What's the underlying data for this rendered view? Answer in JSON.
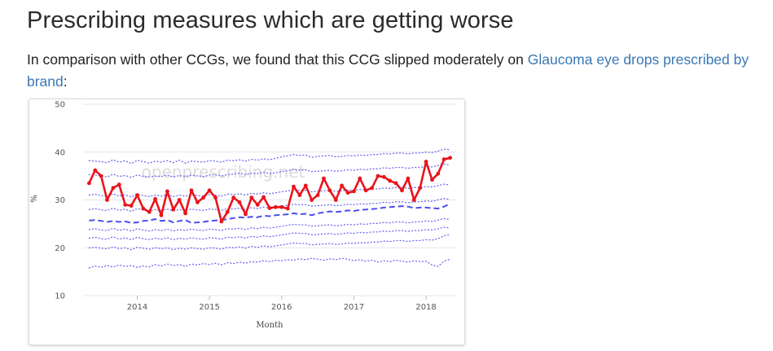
{
  "heading": "Prescribing measures which are getting worse",
  "intro": {
    "before": "In comparison with other CCGs, we found that this CCG slipped moderately on ",
    "link": "Glaucoma eye drops prescribed by brand",
    "after": ":"
  },
  "colors": {
    "ccg_line": "#e8141b",
    "median": "#4c4cf0",
    "deciles": "#6a6af0",
    "grid": "#e6e6e6",
    "link": "#3a78b5"
  },
  "chart_data": {
    "type": "line",
    "watermark": "openprescribing.net",
    "xlabel": "Month",
    "ylabel": "%",
    "ylim": [
      10,
      50
    ],
    "yticks": [
      10,
      20,
      30,
      40,
      50
    ],
    "xlim": [
      "2013-04",
      "2018-06"
    ],
    "xticks": [
      "2014",
      "2015",
      "2016",
      "2017",
      "2018"
    ],
    "x_start": "2013-05",
    "grid": "horizontal",
    "series": [
      {
        "role": "ccg",
        "style": "solid-markers",
        "values": [
          33.5,
          36.2,
          35.0,
          30.0,
          32.5,
          33.2,
          29.0,
          28.8,
          31.0,
          28.2,
          27.5,
          30.2,
          26.8,
          31.8,
          28.0,
          30.0,
          27.2,
          32.0,
          29.5,
          30.5,
          32.0,
          30.5,
          25.5,
          27.5,
          30.5,
          29.5,
          27.0,
          30.5,
          29.0,
          30.6,
          28.3,
          28.5,
          28.5,
          28.2,
          32.8,
          31.0,
          33.0,
          30.0,
          31.0,
          34.5,
          32.0,
          30.0,
          33.0,
          31.5,
          31.8,
          34.5,
          32.0,
          32.5,
          35.0,
          34.8,
          34.0,
          33.5,
          32.0,
          34.5,
          30.0,
          32.5,
          38.0,
          34.2,
          35.5,
          38.5,
          38.8
        ]
      },
      {
        "role": "decile-90",
        "style": "dotted",
        "values": [
          38.2,
          38.1,
          38.0,
          37.8,
          38.4,
          37.9,
          38.2,
          37.6,
          38.3,
          38.0,
          37.7,
          38.1,
          37.9,
          38.2,
          37.8,
          38.3,
          37.7,
          38.1,
          38.0,
          37.9,
          38.2,
          38.1,
          37.9,
          38.3,
          38.2,
          38.4,
          38.1,
          38.5,
          38.3,
          38.6,
          38.4,
          38.7,
          39.0,
          39.2,
          39.5,
          39.3,
          39.4,
          38.9,
          39.1,
          39.2,
          39.3,
          39.0,
          39.1,
          39.3,
          39.2,
          39.4,
          39.3,
          39.5,
          39.5,
          39.7,
          39.6,
          39.8,
          39.8,
          39.6,
          39.8,
          39.8,
          40.0,
          39.9,
          40.2,
          40.6,
          40.5
        ]
      },
      {
        "role": "decile-80",
        "style": "dotted",
        "values": [
          35.3,
          35.2,
          35.0,
          34.8,
          35.4,
          34.9,
          35.1,
          34.7,
          35.2,
          34.9,
          34.8,
          35.0,
          34.9,
          35.2,
          34.8,
          35.1,
          34.9,
          35.2,
          35.0,
          34.9,
          35.2,
          35.3,
          35.0,
          35.3,
          35.4,
          35.6,
          35.3,
          35.6,
          35.5,
          35.8,
          35.5,
          35.7,
          35.9,
          36.1,
          36.4,
          36.2,
          36.3,
          35.9,
          36.0,
          36.1,
          36.2,
          36.0,
          36.1,
          36.3,
          36.2,
          36.4,
          36.3,
          36.5,
          36.5,
          36.7,
          36.6,
          36.8,
          36.8,
          36.6,
          36.8,
          36.8,
          37.0,
          36.9,
          37.2,
          37.5,
          37.3
        ]
      },
      {
        "role": "decile-70",
        "style": "dotted",
        "values": [
          31.0,
          31.2,
          30.9,
          30.8,
          31.3,
          30.8,
          31.1,
          30.6,
          31.2,
          30.9,
          30.7,
          31.0,
          30.8,
          31.1,
          30.7,
          31.0,
          30.8,
          31.1,
          30.9,
          30.8,
          31.1,
          31.0,
          30.8,
          31.2,
          31.1,
          31.3,
          31.0,
          31.4,
          31.2,
          31.5,
          31.3,
          31.5,
          31.7,
          31.9,
          32.1,
          32.0,
          32.0,
          31.7,
          31.8,
          31.9,
          32.0,
          31.8,
          31.9,
          32.1,
          32.0,
          32.2,
          32.1,
          32.3,
          32.3,
          32.5,
          32.4,
          32.6,
          32.6,
          32.4,
          32.6,
          32.6,
          32.8,
          32.7,
          33.0,
          33.3,
          33.1
        ]
      },
      {
        "role": "decile-60",
        "style": "dotted",
        "values": [
          28.0,
          28.2,
          27.9,
          27.8,
          28.3,
          27.8,
          28.1,
          27.6,
          28.2,
          27.9,
          27.7,
          28.0,
          27.8,
          28.1,
          27.7,
          28.0,
          27.8,
          28.1,
          27.9,
          27.8,
          28.1,
          28.0,
          27.8,
          28.2,
          28.1,
          28.3,
          28.0,
          28.4,
          28.2,
          28.5,
          28.3,
          28.5,
          28.7,
          28.9,
          29.1,
          29.0,
          29.0,
          28.7,
          28.8,
          28.9,
          29.0,
          28.8,
          28.9,
          29.1,
          29.0,
          29.2,
          29.1,
          29.3,
          29.3,
          29.5,
          29.4,
          29.6,
          29.6,
          29.4,
          29.6,
          29.6,
          29.8,
          29.7,
          30.0,
          30.3,
          30.1
        ]
      },
      {
        "role": "median",
        "style": "dashed",
        "values": [
          25.7,
          25.8,
          25.6,
          25.4,
          25.6,
          25.4,
          25.5,
          25.2,
          25.3,
          25.6,
          25.7,
          26.0,
          25.6,
          25.8,
          25.3,
          25.6,
          25.8,
          25.2,
          25.3,
          25.4,
          25.6,
          25.7,
          25.8,
          26.0,
          26.2,
          26.4,
          26.3,
          26.5,
          26.4,
          26.7,
          26.6,
          26.8,
          26.9,
          27.0,
          27.2,
          27.0,
          27.1,
          26.8,
          27.2,
          27.4,
          27.6,
          27.5,
          27.6,
          27.8,
          27.7,
          27.9,
          28.0,
          28.1,
          28.2,
          28.4,
          28.5,
          28.6,
          28.7,
          28.6,
          28.3,
          28.4,
          28.4,
          28.3,
          28.2,
          28.6,
          29.2
        ]
      },
      {
        "role": "decile-40",
        "style": "dotted",
        "values": [
          23.8,
          24.0,
          23.7,
          23.6,
          24.1,
          23.6,
          23.9,
          23.5,
          24.0,
          23.7,
          23.5,
          23.8,
          23.6,
          23.9,
          23.5,
          23.8,
          23.6,
          23.9,
          23.7,
          23.6,
          23.9,
          23.8,
          23.6,
          24.0,
          23.9,
          24.1,
          23.8,
          24.2,
          24.0,
          24.3,
          24.1,
          24.3,
          24.5,
          24.7,
          24.9,
          24.8,
          24.8,
          24.5,
          24.6,
          24.7,
          24.8,
          24.6,
          24.7,
          24.9,
          24.8,
          25.0,
          24.9,
          25.1,
          25.1,
          25.3,
          25.2,
          25.4,
          25.4,
          25.2,
          25.4,
          25.4,
          25.6,
          25.5,
          25.8,
          26.1,
          25.9
        ]
      },
      {
        "role": "decile-30",
        "style": "dotted",
        "values": [
          22.0,
          22.2,
          21.9,
          21.8,
          22.3,
          21.8,
          22.1,
          21.7,
          22.2,
          21.9,
          21.7,
          22.0,
          21.8,
          22.1,
          21.7,
          22.0,
          21.8,
          22.1,
          21.9,
          21.8,
          22.1,
          22.0,
          21.8,
          22.2,
          22.1,
          22.3,
          22.0,
          22.4,
          22.2,
          22.5,
          22.3,
          22.5,
          22.7,
          22.9,
          23.1,
          23.0,
          23.0,
          22.7,
          22.8,
          22.9,
          23.0,
          22.8,
          22.9,
          23.1,
          23.0,
          23.2,
          23.1,
          23.3,
          23.3,
          23.5,
          23.4,
          23.6,
          23.6,
          23.4,
          23.6,
          23.6,
          23.8,
          23.7,
          24.0,
          24.3,
          24.1
        ]
      },
      {
        "role": "decile-20",
        "style": "dotted",
        "values": [
          20.0,
          20.1,
          19.9,
          19.8,
          20.2,
          19.8,
          20.0,
          19.6,
          20.1,
          19.9,
          19.7,
          20.0,
          19.8,
          20.0,
          19.6,
          19.9,
          19.7,
          20.0,
          19.8,
          19.7,
          20.0,
          19.9,
          19.7,
          20.1,
          20.0,
          20.2,
          19.9,
          20.3,
          20.1,
          20.4,
          20.2,
          20.4,
          20.6,
          20.8,
          21.0,
          20.9,
          20.9,
          20.6,
          20.7,
          20.8,
          20.9,
          20.7,
          20.8,
          21.0,
          20.9,
          21.1,
          21.0,
          21.2,
          21.2,
          21.4,
          21.3,
          21.5,
          21.5,
          21.3,
          21.5,
          21.5,
          21.7,
          21.6,
          21.9,
          22.5,
          22.8
        ]
      },
      {
        "role": "decile-10",
        "style": "dotted",
        "values": [
          15.8,
          16.2,
          15.9,
          16.3,
          16.0,
          16.4,
          16.1,
          16.3,
          15.9,
          16.2,
          16.0,
          16.5,
          16.2,
          16.6,
          16.3,
          16.5,
          16.1,
          16.6,
          16.4,
          16.7,
          16.5,
          16.8,
          16.4,
          16.9,
          16.7,
          17.0,
          16.8,
          17.1,
          17.0,
          17.3,
          17.1,
          17.4,
          17.3,
          17.5,
          17.4,
          17.7,
          17.5,
          17.8,
          17.6,
          17.4,
          17.7,
          17.5,
          17.8,
          17.6,
          17.3,
          17.5,
          17.2,
          17.4,
          17.0,
          17.3,
          17.1,
          17.4,
          17.2,
          17.0,
          17.3,
          17.1,
          17.2,
          16.4,
          16.1,
          17.2,
          17.6
        ]
      }
    ]
  }
}
